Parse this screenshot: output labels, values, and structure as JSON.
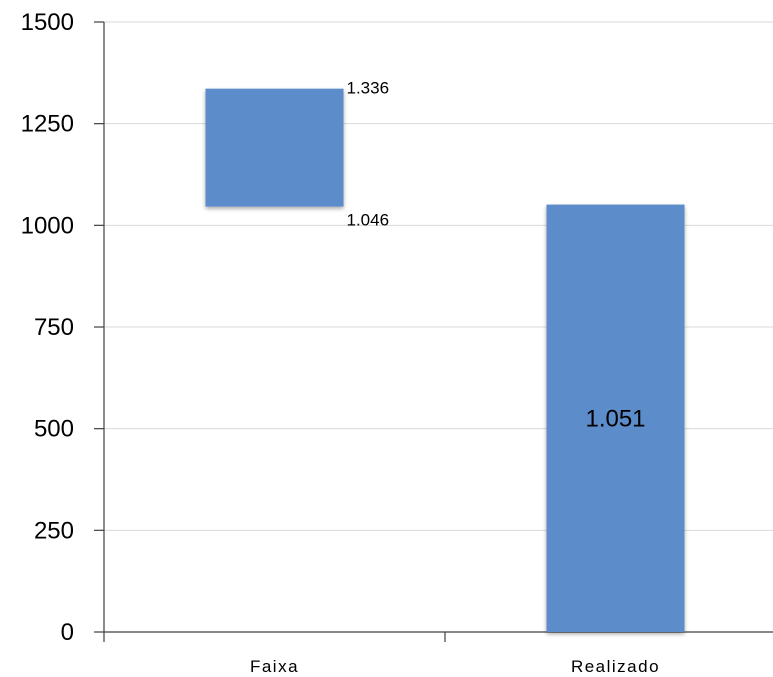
{
  "chart_data": {
    "type": "bar",
    "subtype": "floating-range",
    "categories": [
      "Faixa",
      "Realizado"
    ],
    "series": [
      {
        "bars": [
          {
            "category": "Faixa",
            "low": 1046,
            "high": 1336,
            "labels": [
              "1.336",
              "1.046"
            ]
          },
          {
            "category": "Realizado",
            "low": 0,
            "high": 1051,
            "labels": [
              "1.051"
            ]
          }
        ]
      }
    ],
    "ylim": [
      0,
      1500
    ],
    "yticks": [
      0,
      250,
      500,
      750,
      1000,
      1250,
      1500
    ],
    "ytick_labels": [
      "0",
      "250",
      "500",
      "750",
      "1000",
      "1250",
      "1500"
    ],
    "grid": true,
    "bar_color": "#5b8cc9",
    "title": "",
    "xlabel": "",
    "ylabel": ""
  }
}
